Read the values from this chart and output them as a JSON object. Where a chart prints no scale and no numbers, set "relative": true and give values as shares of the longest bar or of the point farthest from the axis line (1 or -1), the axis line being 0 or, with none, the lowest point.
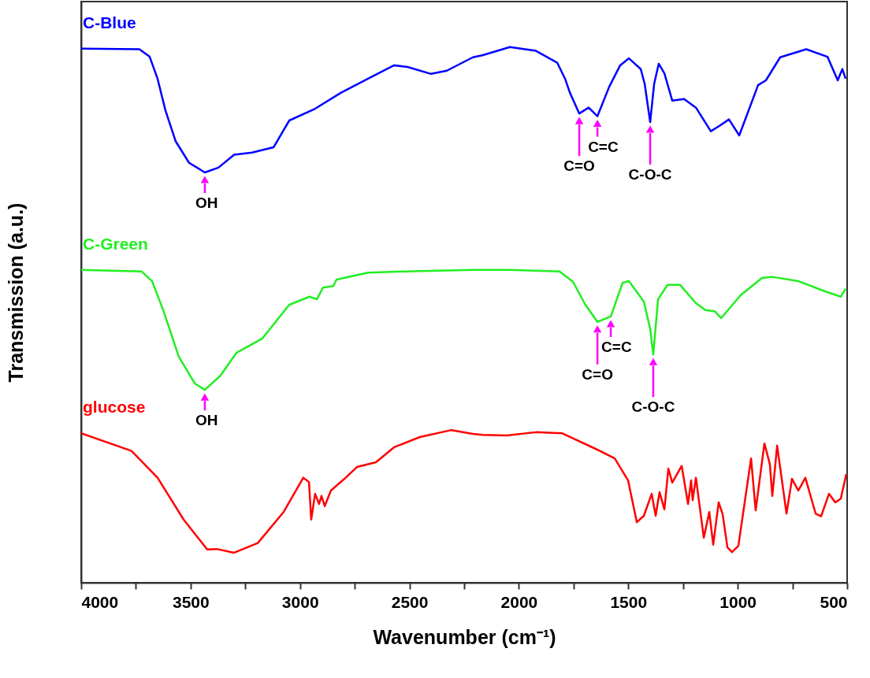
{
  "chart_data": {
    "type": "line",
    "relative": true,
    "xlabel": "Wavenumber (cm⁻¹)",
    "ylabel": "Transmission (a.u.)",
    "xlim": [
      4000,
      500
    ],
    "xticks": [
      4000,
      {
        "value": 3750,
        "label": null
      },
      3500,
      {
        "value": 3250,
        "label": null
      },
      3000,
      {
        "value": 2750,
        "label": null
      },
      2500,
      {
        "value": 2250,
        "label": null
      },
      2000,
      {
        "value": 1750,
        "label": null
      },
      1500,
      {
        "value": 1250,
        "label": null
      },
      1000,
      {
        "value": 750,
        "label": null
      },
      500
    ],
    "series": [
      {
        "name": "C-Blue",
        "color": "#0000ff",
        "x": [
          4000,
          3734,
          3687,
          3651,
          3615,
          3568,
          3507,
          3435,
          3373,
          3301,
          3219,
          3121,
          3049,
          2931,
          2812,
          2689,
          2570,
          2509,
          2401,
          2329,
          2210,
          2164,
          2041,
          1922,
          1825,
          1789,
          1767,
          1724,
          1681,
          1641,
          1587,
          1537,
          1497,
          1443,
          1425,
          1400,
          1382,
          1361,
          1335,
          1299,
          1245,
          1191,
          1123,
          1083,
          1040,
          993,
          907,
          871,
          806,
          687,
          590,
          543,
          522,
          507
        ],
        "values": [
          0.997,
          0.996,
          0.982,
          0.941,
          0.882,
          0.824,
          0.784,
          0.766,
          0.775,
          0.799,
          0.803,
          0.813,
          0.863,
          0.885,
          0.915,
          0.941,
          0.966,
          0.963,
          0.95,
          0.956,
          0.981,
          0.985,
          1.0,
          0.993,
          0.971,
          0.941,
          0.915,
          0.876,
          0.887,
          0.871,
          0.926,
          0.966,
          0.979,
          0.959,
          0.931,
          0.86,
          0.931,
          0.969,
          0.951,
          0.9,
          0.903,
          0.887,
          0.843,
          0.853,
          0.865,
          0.835,
          0.929,
          0.938,
          0.981,
          0.996,
          0.982,
          0.938,
          0.959,
          0.941
        ]
      },
      {
        "name": "C-Green",
        "color": "#22ee22",
        "x": [
          4000,
          3723,
          3676,
          3626,
          3554,
          3481,
          3435,
          3363,
          3291,
          3172,
          3049,
          2956,
          2923,
          2895,
          2848,
          2833,
          2689,
          2452,
          2210,
          2041,
          1814,
          1753,
          1696,
          1641,
          1580,
          1526,
          1497,
          1429,
          1400,
          1386,
          1364,
          1321,
          1263,
          1191,
          1148,
          1105,
          1076,
          986,
          889,
          842,
          723,
          601,
          529,
          507
        ],
        "values": [
          0.584,
          0.581,
          0.563,
          0.51,
          0.422,
          0.372,
          0.36,
          0.387,
          0.429,
          0.456,
          0.519,
          0.534,
          0.529,
          0.551,
          0.554,
          0.566,
          0.579,
          0.582,
          0.584,
          0.584,
          0.581,
          0.562,
          0.519,
          0.487,
          0.497,
          0.56,
          0.563,
          0.525,
          0.474,
          0.426,
          0.529,
          0.556,
          0.556,
          0.522,
          0.509,
          0.507,
          0.494,
          0.537,
          0.569,
          0.571,
          0.563,
          0.544,
          0.534,
          0.549
        ]
      },
      {
        "name": "glucose",
        "color": "#ff0000",
        "x": [
          4000,
          3770,
          3651,
          3532,
          3424,
          3381,
          3301,
          3193,
          3075,
          2985,
          2959,
          2949,
          2931,
          2913,
          2902,
          2887,
          2859,
          2797,
          2740,
          2653,
          2570,
          2452,
          2308,
          2210,
          2164,
          2056,
          1922,
          1803,
          1634,
          1562,
          1501,
          1461,
          1429,
          1393,
          1375,
          1357,
          1335,
          1317,
          1299,
          1256,
          1227,
          1213,
          1206,
          1191,
          1155,
          1130,
          1112,
          1087,
          1069,
          1047,
          1026,
          997,
          939,
          918,
          878,
          853,
          842,
          820,
          777,
          752,
          723,
          691,
          644,
          619,
          583,
          554,
          529,
          504
        ],
        "values": [
          0.279,
          0.246,
          0.196,
          0.118,
          0.062,
          0.063,
          0.056,
          0.074,
          0.132,
          0.196,
          0.188,
          0.118,
          0.166,
          0.147,
          0.162,
          0.143,
          0.172,
          0.194,
          0.216,
          0.225,
          0.253,
          0.272,
          0.285,
          0.278,
          0.276,
          0.275,
          0.281,
          0.279,
          0.247,
          0.232,
          0.191,
          0.113,
          0.125,
          0.166,
          0.125,
          0.169,
          0.137,
          0.213,
          0.187,
          0.218,
          0.147,
          0.191,
          0.154,
          0.196,
          0.084,
          0.132,
          0.071,
          0.15,
          0.128,
          0.066,
          0.057,
          0.069,
          0.232,
          0.135,
          0.26,
          0.221,
          0.162,
          0.256,
          0.129,
          0.194,
          0.172,
          0.196,
          0.129,
          0.124,
          0.166,
          0.15,
          0.157,
          0.203
        ]
      }
    ],
    "annotations": [
      {
        "text": "OH",
        "x": 3435,
        "y": 0.766
      },
      {
        "text": "C=O",
        "x": 1724,
        "y": 0.876
      },
      {
        "text": "C=C",
        "x": 1641,
        "y": 0.871
      },
      {
        "text": "C-O-C",
        "x": 1400,
        "y": 0.86
      },
      {
        "text": "OH",
        "x": 3435,
        "y": 0.36
      },
      {
        "text": "C=O",
        "x": 1641,
        "y": 0.487
      },
      {
        "text": "C=C",
        "x": 1580,
        "y": 0.497
      },
      {
        "text": "C-O-C",
        "x": 1386,
        "y": 0.426
      }
    ]
  }
}
